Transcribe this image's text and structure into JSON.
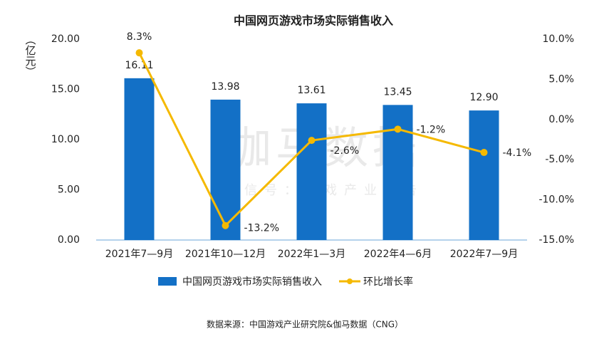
{
  "chart_data": {
    "type": "bar-line",
    "title": "中国网页游戏市场实际销售收入",
    "y_label": "（亿元）",
    "watermark": "伽马数据",
    "watermark_sub": "微信号：游戏产业报告",
    "source": "数据来源：中国游戏产业研究院&伽马数据（CNG）",
    "categories": [
      "2021年7—9月",
      "2021年10—12月",
      "2022年1—3月",
      "2022年4—6月",
      "2022年7—9月"
    ],
    "series": [
      {
        "name": "中国网页游戏市场实际销售收入",
        "type": "bar",
        "color": "#1370c6",
        "values": [
          16.11,
          13.98,
          13.61,
          13.45,
          12.9
        ],
        "value_labels": [
          "16.11",
          "13.98",
          "13.61",
          "13.45",
          "12.90"
        ]
      },
      {
        "name": "环比增长率",
        "type": "line",
        "axis": "y2",
        "color": "#f5b900",
        "values": [
          8.3,
          -13.2,
          -2.6,
          -1.2,
          -4.1
        ],
        "value_labels": [
          "8.3%",
          "-13.2%",
          "-2.6%",
          "-1.2%",
          "-4.1%"
        ]
      }
    ],
    "ylim": [
      0,
      20
    ],
    "yticks": [
      {
        "value": 0,
        "label": "0.00"
      },
      {
        "value": 5,
        "label": "5.00"
      },
      {
        "value": 10,
        "label": "10.00"
      },
      {
        "value": 15,
        "label": "15.00"
      },
      {
        "value": 20,
        "label": "20.00"
      }
    ],
    "y2lim": [
      -15,
      10
    ],
    "y2ticks": [
      {
        "value": -15,
        "label": "-15.0%"
      },
      {
        "value": -10,
        "label": "-10.0%"
      },
      {
        "value": -5,
        "label": "-5.0%"
      },
      {
        "value": 0,
        "label": "0.0%"
      },
      {
        "value": 5,
        "label": "5.0%"
      },
      {
        "value": 10,
        "label": "10.0%"
      }
    ],
    "legend": "bottom"
  }
}
